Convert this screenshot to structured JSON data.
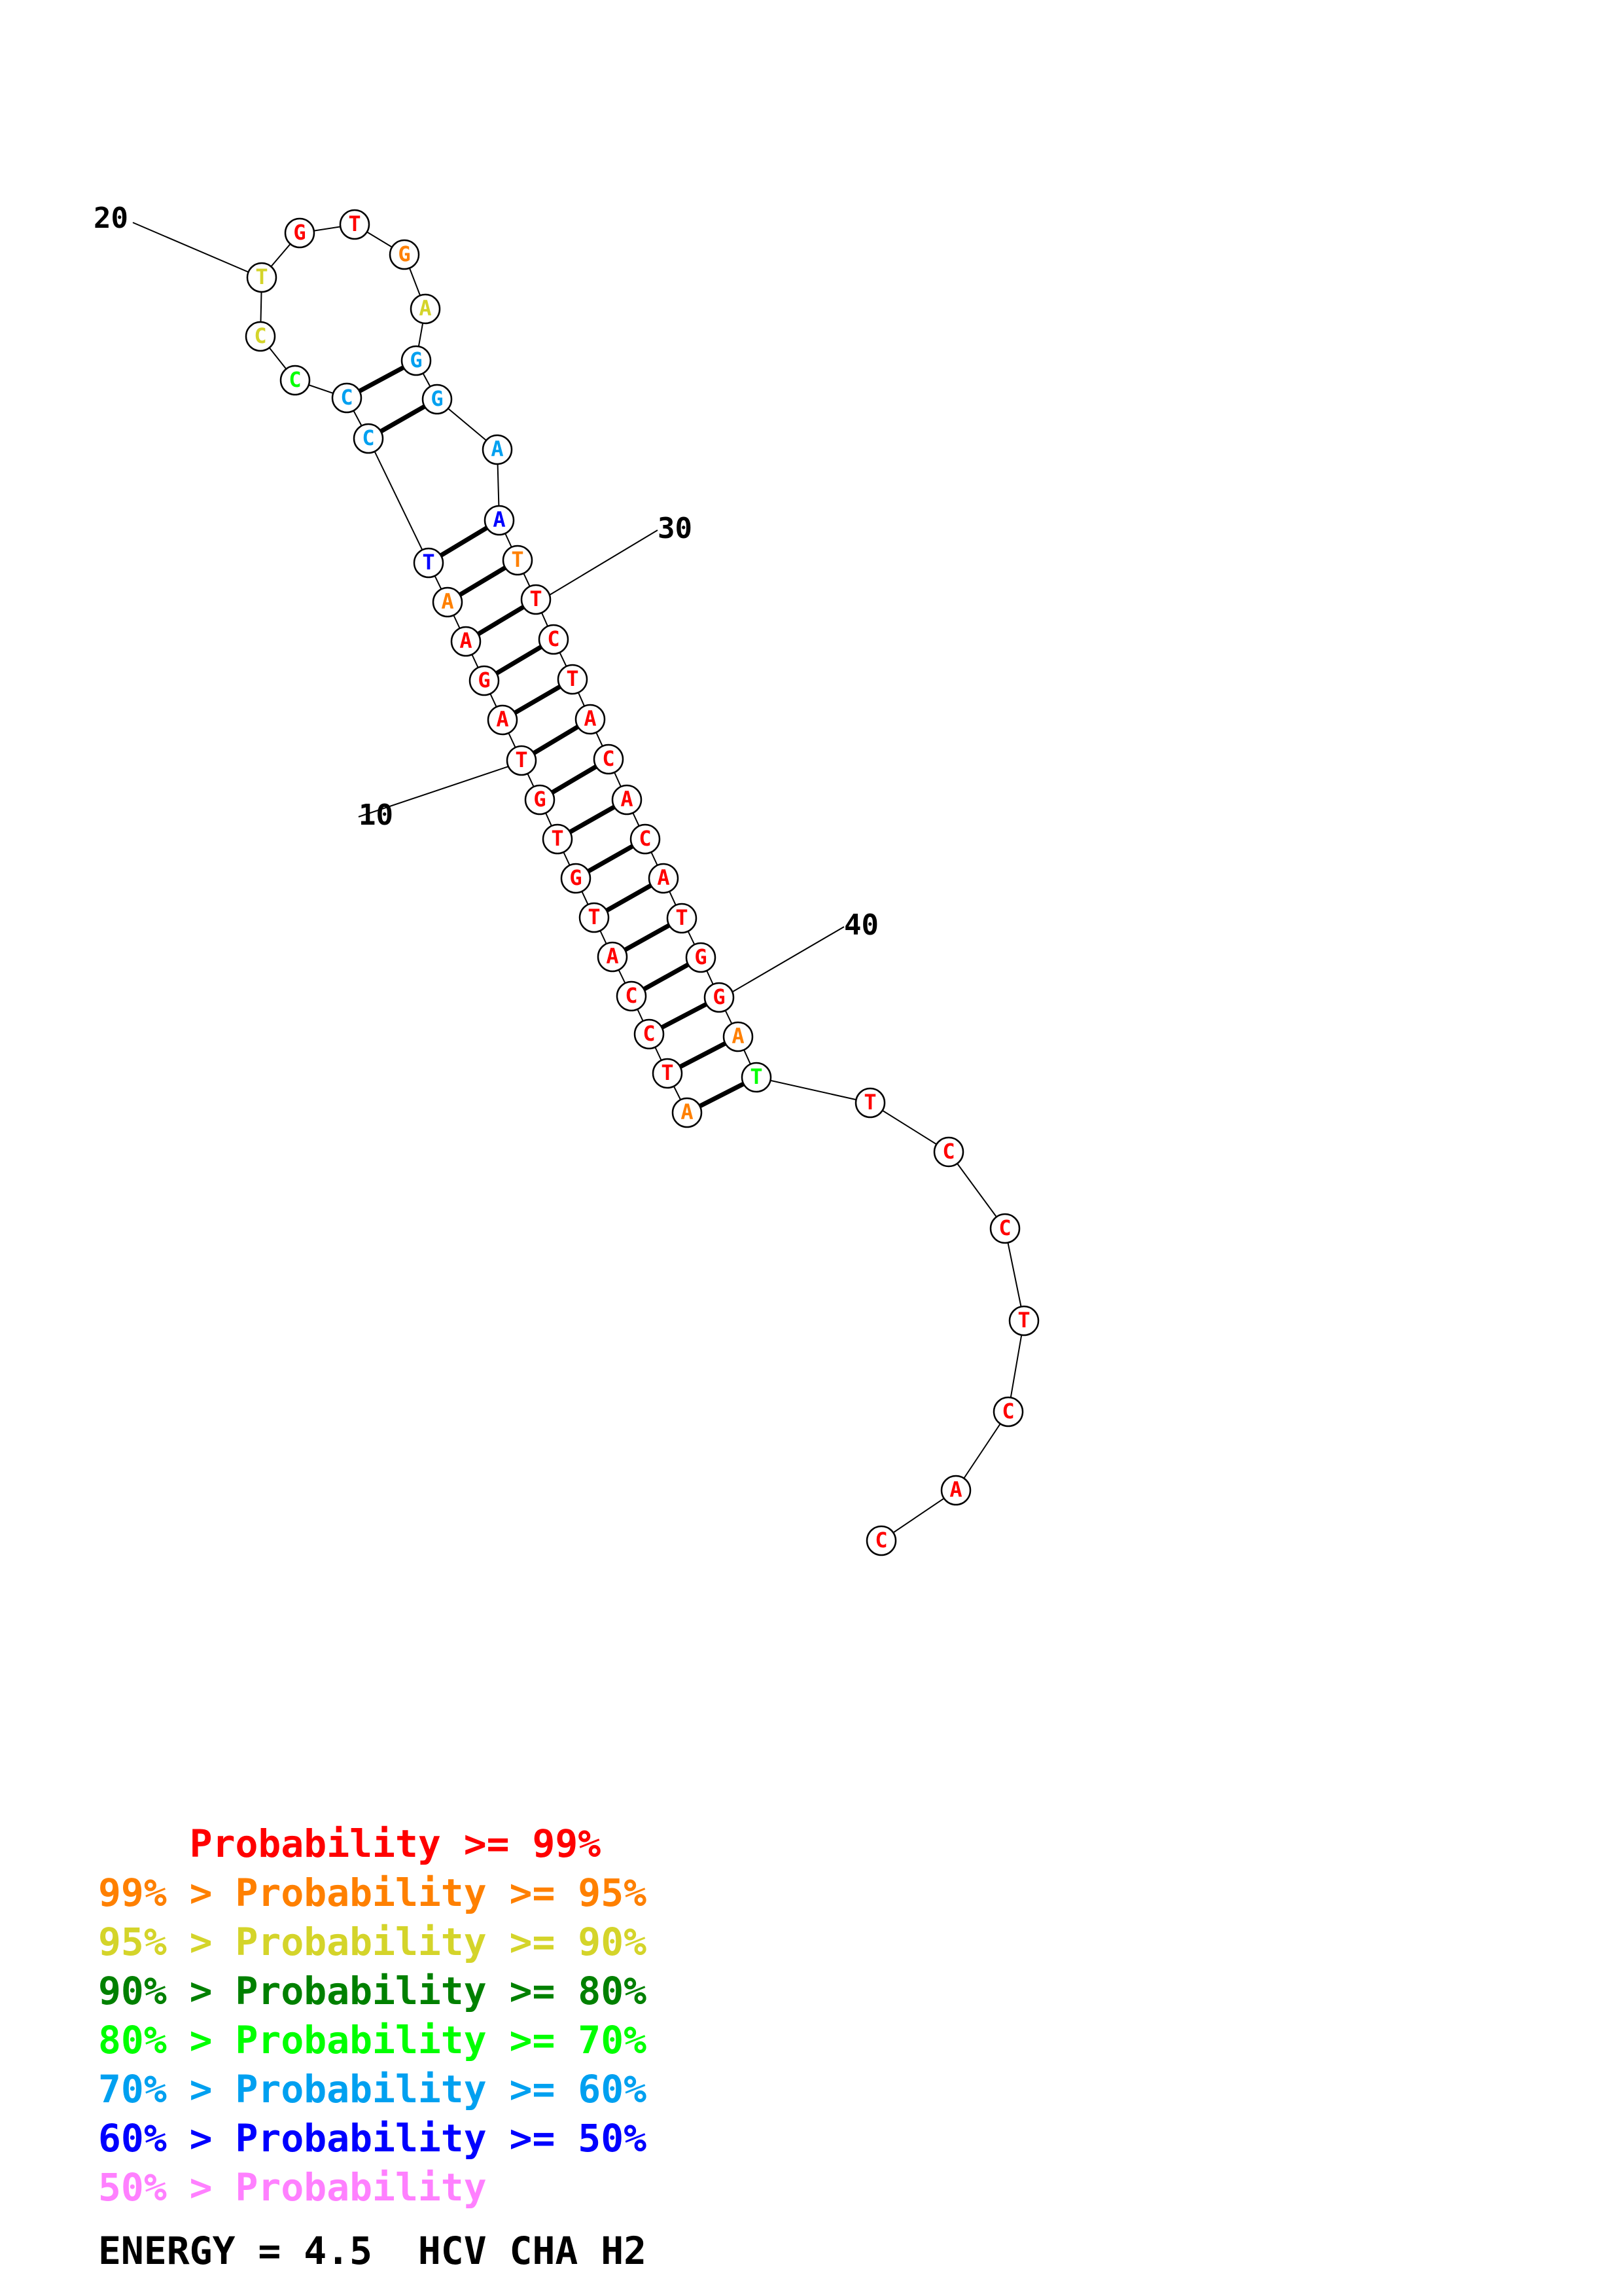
{
  "colors": {
    "p99": "#ff0000",
    "p95": "#ff8000",
    "p90": "#d4d42a",
    "p80": "#008000",
    "p70": "#00ff00",
    "p60": "#00a0f0",
    "p50": "#0000ff",
    "plow": "#ff80ff"
  },
  "sequence": [
    {
      "n": 1,
      "b": "A",
      "c": "p95"
    },
    {
      "n": 2,
      "b": "T",
      "c": "p99"
    },
    {
      "n": 3,
      "b": "C",
      "c": "p99"
    },
    {
      "n": 4,
      "b": "C",
      "c": "p99"
    },
    {
      "n": 5,
      "b": "A",
      "c": "p99"
    },
    {
      "n": 6,
      "b": "T",
      "c": "p99"
    },
    {
      "n": 7,
      "b": "G",
      "c": "p99"
    },
    {
      "n": 8,
      "b": "T",
      "c": "p99"
    },
    {
      "n": 9,
      "b": "G",
      "c": "p99"
    },
    {
      "n": 10,
      "b": "T",
      "c": "p99"
    },
    {
      "n": 11,
      "b": "A",
      "c": "p99"
    },
    {
      "n": 12,
      "b": "G",
      "c": "p99"
    },
    {
      "n": 13,
      "b": "A",
      "c": "p99"
    },
    {
      "n": 14,
      "b": "A",
      "c": "p95"
    },
    {
      "n": 15,
      "b": "T",
      "c": "p50"
    },
    {
      "n": 16,
      "b": "C",
      "c": "p60"
    },
    {
      "n": 17,
      "b": "C",
      "c": "p60"
    },
    {
      "n": 18,
      "b": "C",
      "c": "p70"
    },
    {
      "n": 19,
      "b": "C",
      "c": "p90"
    },
    {
      "n": 20,
      "b": "T",
      "c": "p90"
    },
    {
      "n": 21,
      "b": "G",
      "c": "p99"
    },
    {
      "n": 22,
      "b": "T",
      "c": "p99"
    },
    {
      "n": 23,
      "b": "G",
      "c": "p95"
    },
    {
      "n": 24,
      "b": "A",
      "c": "p90"
    },
    {
      "n": 25,
      "b": "G",
      "c": "p60"
    },
    {
      "n": 26,
      "b": "G",
      "c": "p60"
    },
    {
      "n": 27,
      "b": "A",
      "c": "p60"
    },
    {
      "n": 28,
      "b": "A",
      "c": "p50"
    },
    {
      "n": 29,
      "b": "T",
      "c": "p95"
    },
    {
      "n": 30,
      "b": "T",
      "c": "p99"
    },
    {
      "n": 31,
      "b": "C",
      "c": "p99"
    },
    {
      "n": 32,
      "b": "T",
      "c": "p99"
    },
    {
      "n": 33,
      "b": "A",
      "c": "p99"
    },
    {
      "n": 34,
      "b": "C",
      "c": "p99"
    },
    {
      "n": 35,
      "b": "A",
      "c": "p99"
    },
    {
      "n": 36,
      "b": "C",
      "c": "p99"
    },
    {
      "n": 37,
      "b": "A",
      "c": "p99"
    },
    {
      "n": 38,
      "b": "T",
      "c": "p99"
    },
    {
      "n": 39,
      "b": "G",
      "c": "p99"
    },
    {
      "n": 40,
      "b": "G",
      "c": "p99"
    },
    {
      "n": 41,
      "b": "A",
      "c": "p95"
    },
    {
      "n": 42,
      "b": "T",
      "c": "p70"
    },
    {
      "n": 43,
      "b": "T",
      "c": "p99"
    },
    {
      "n": 44,
      "b": "C",
      "c": "p99"
    },
    {
      "n": 45,
      "b": "C",
      "c": "p99"
    },
    {
      "n": 46,
      "b": "T",
      "c": "p99"
    },
    {
      "n": 47,
      "b": "C",
      "c": "p99"
    },
    {
      "n": 48,
      "b": "A",
      "c": "p99"
    },
    {
      "n": 49,
      "b": "C",
      "c": "p99"
    }
  ],
  "pairs": [
    [
      1,
      42
    ],
    [
      2,
      41
    ],
    [
      3,
      40
    ],
    [
      4,
      39
    ],
    [
      5,
      38
    ],
    [
      6,
      37
    ],
    [
      7,
      36
    ],
    [
      8,
      35
    ],
    [
      9,
      34
    ],
    [
      10,
      33
    ],
    [
      11,
      32
    ],
    [
      12,
      31
    ],
    [
      13,
      30
    ],
    [
      14,
      29
    ],
    [
      15,
      28
    ],
    [
      16,
      26
    ],
    [
      17,
      25
    ]
  ],
  "position_labels": [
    {
      "n": 10,
      "text": "10"
    },
    {
      "n": 20,
      "text": "20"
    },
    {
      "n": 30,
      "text": "30"
    },
    {
      "n": 40,
      "text": "40"
    }
  ],
  "legend": [
    {
      "text": "    Probability >= 99%",
      "color": "p99"
    },
    {
      "text": "99% > Probability >= 95%",
      "color": "p95"
    },
    {
      "text": "95% > Probability >= 90%",
      "color": "p90"
    },
    {
      "text": "90% > Probability >= 80%",
      "color": "p80"
    },
    {
      "text": "80% > Probability >= 70%",
      "color": "p70"
    },
    {
      "text": "70% > Probability >= 60%",
      "color": "p60"
    },
    {
      "text": "60% > Probability >= 50%",
      "color": "p50"
    },
    {
      "text": "50% > Probability",
      "color": "plow"
    }
  ],
  "footer": {
    "text": "ENERGY = 4.5  HCV CHA H2"
  }
}
